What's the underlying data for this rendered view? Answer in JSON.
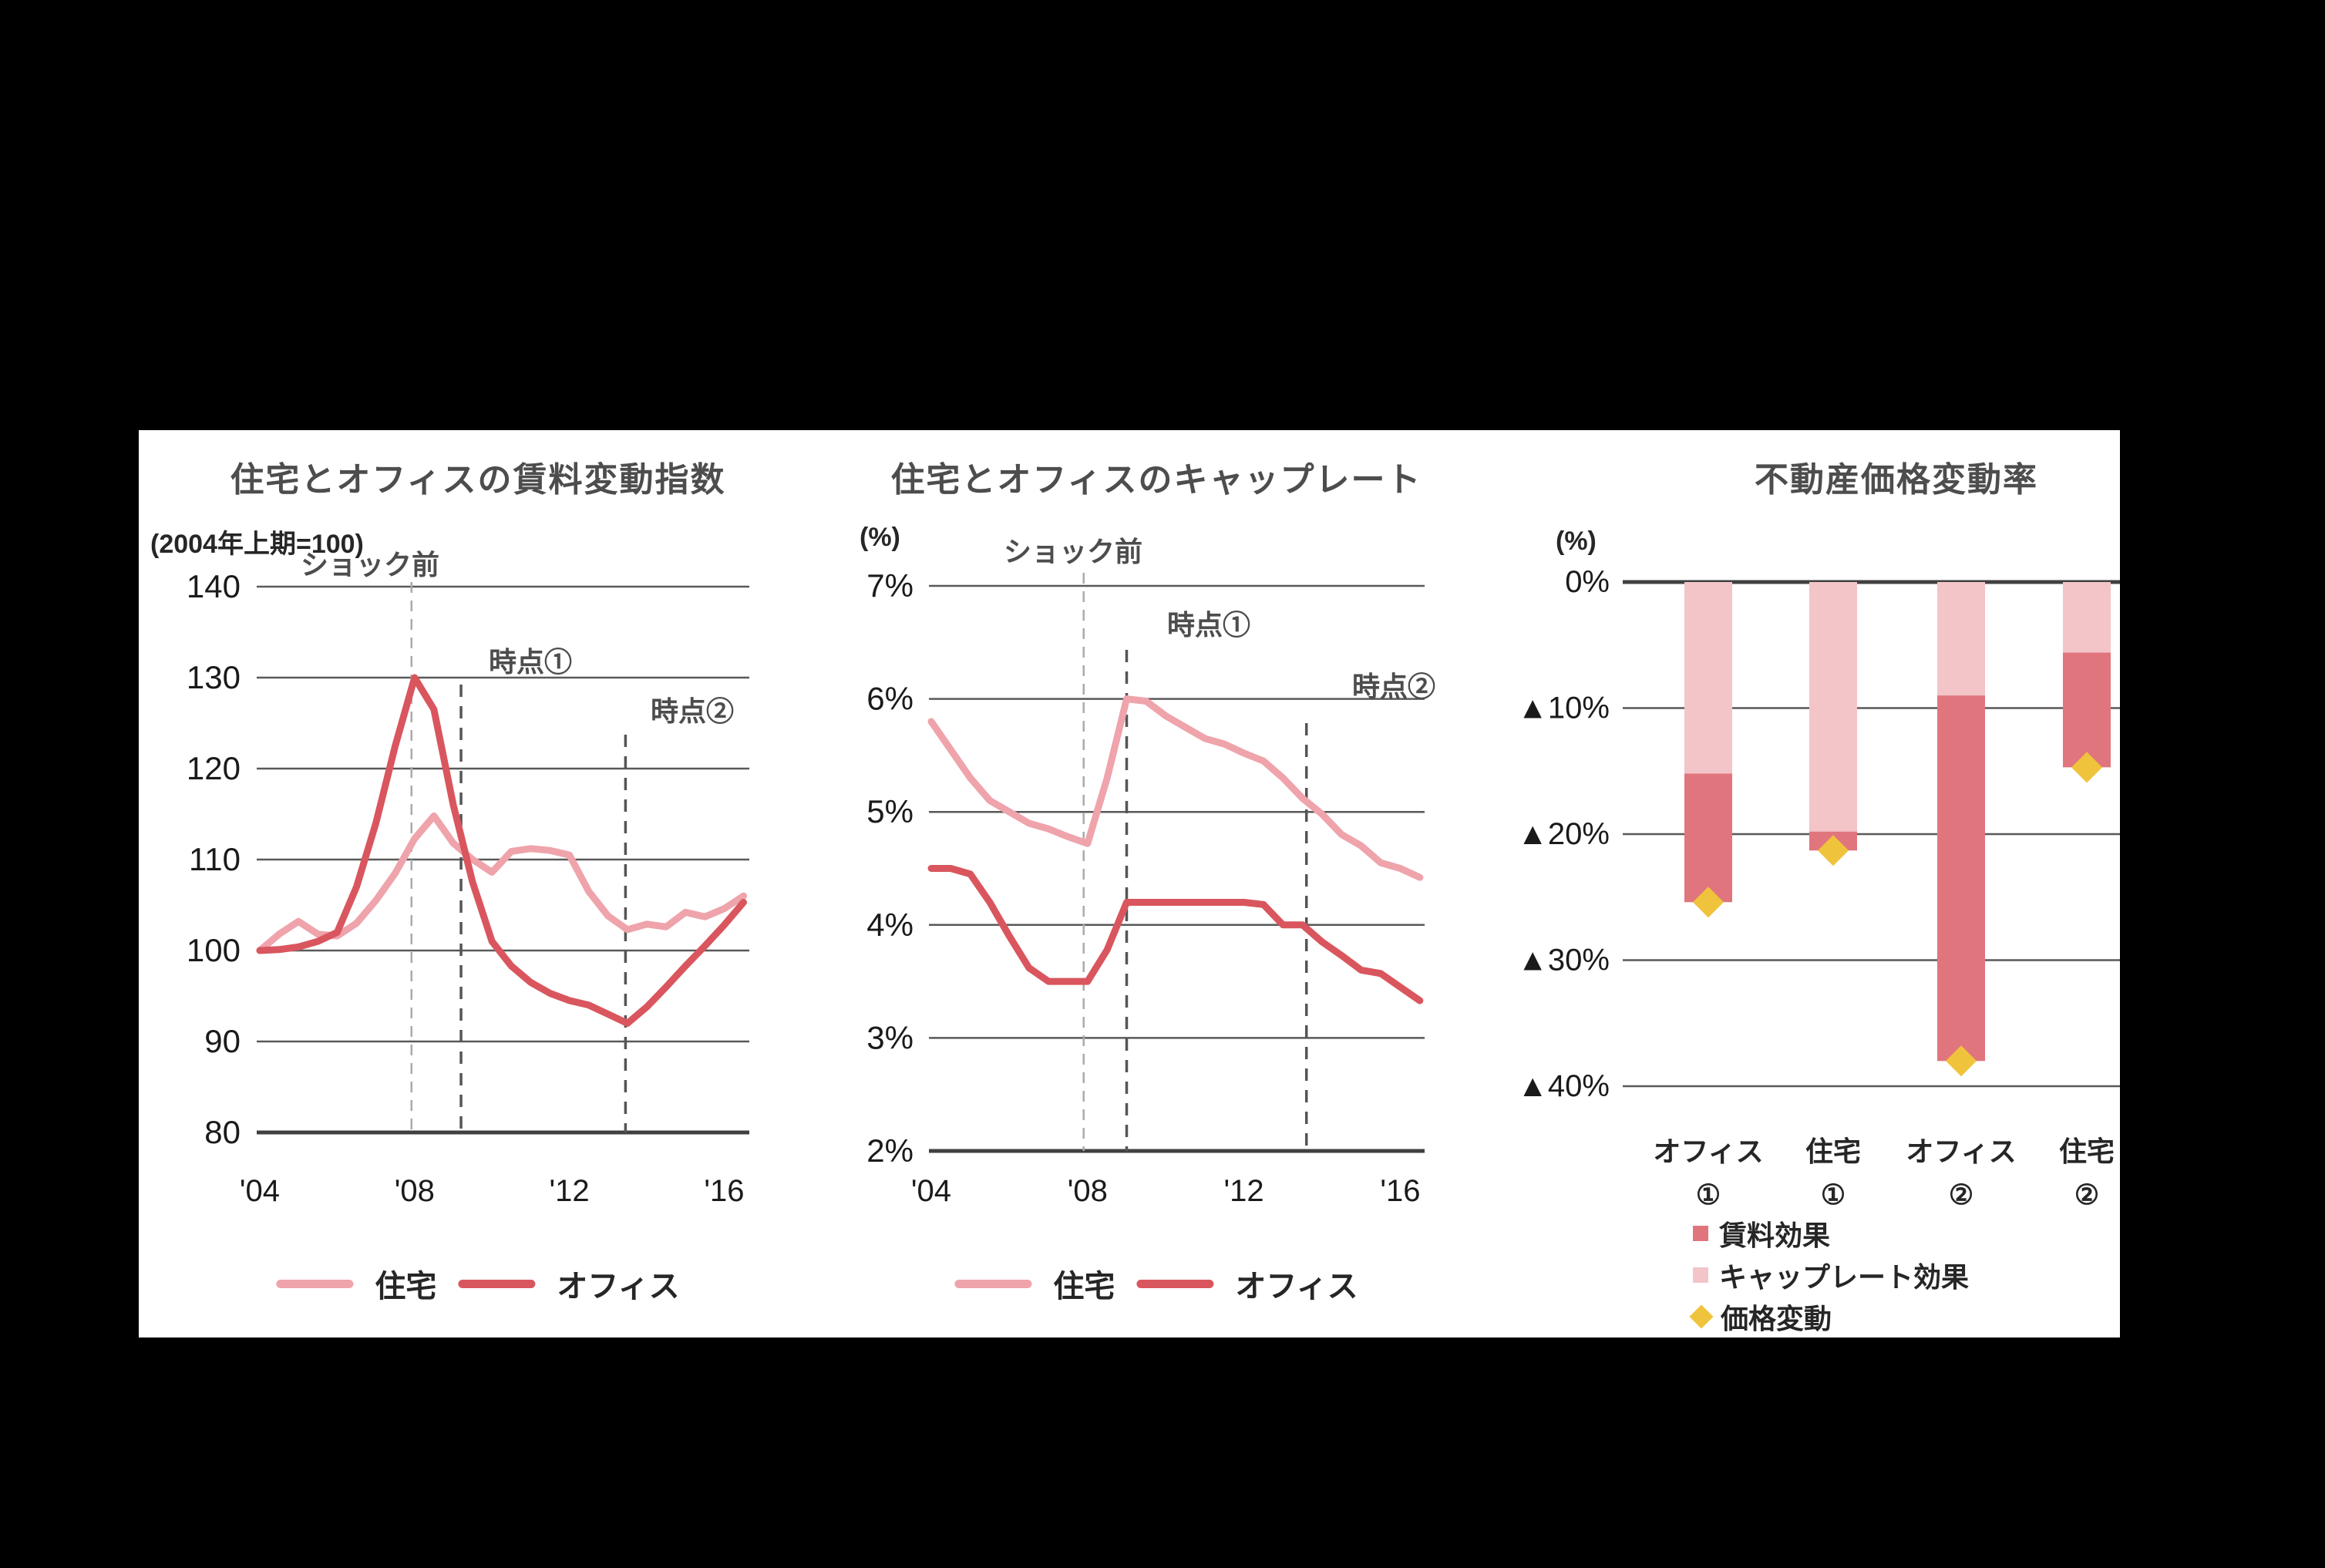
{
  "page": {
    "background": "#000000",
    "panel_background": "#ffffff"
  },
  "colors": {
    "residential_line": "#efa3ab",
    "office_line": "#d9565e",
    "rent_effect_bar": "#e0757e",
    "caprate_effect_bar": "#f3c4c8",
    "price_change_diamond": "#f0c33c",
    "gridline": "#595959",
    "axis": "#404040",
    "dash_light": "#aaaaaa",
    "dash_dark": "#555555",
    "title_text": "#4d4d4d",
    "tick_text": "#1a1a1a"
  },
  "chart_data": [
    {
      "type": "line",
      "title": "住宅とオフィスの賃料変動指数",
      "axis_note": "(2004年上期=100)",
      "ylim": [
        80,
        140
      ],
      "grid": true,
      "legend_position": "bottom",
      "y_ticks": [
        {
          "v": 140,
          "label": "140"
        },
        {
          "v": 130,
          "label": "130"
        },
        {
          "v": 120,
          "label": "120"
        },
        {
          "v": 110,
          "label": "110"
        },
        {
          "v": 100,
          "label": "100"
        },
        {
          "v": 90,
          "label": "90"
        },
        {
          "v": 80,
          "label": "80"
        }
      ],
      "x_ticks": [
        {
          "year": 2004,
          "label": "'04"
        },
        {
          "year": 2008,
          "label": "'08"
        },
        {
          "year": 2012,
          "label": "'12"
        },
        {
          "year": 2016,
          "label": "'16"
        }
      ],
      "annotations": [
        {
          "label": "ショック前",
          "year": 2007.92,
          "style": "light"
        },
        {
          "label": "時点①",
          "year": 2009.2,
          "style": "dark"
        },
        {
          "label": "時点②",
          "year": 2013.45,
          "style": "dark"
        }
      ],
      "x": [
        2004,
        2004.5,
        2005,
        2005.5,
        2006,
        2006.5,
        2007,
        2007.5,
        2008,
        2008.5,
        2009,
        2009.5,
        2010,
        2010.5,
        2011,
        2011.5,
        2012,
        2012.5,
        2013,
        2013.5,
        2014,
        2014.5,
        2015,
        2015.5,
        2016,
        2016.5
      ],
      "series": [
        {
          "name": "住宅",
          "color": "#efa3ab",
          "values": [
            100,
            101.8,
            103.2,
            101.8,
            101.6,
            103,
            105.5,
            108.5,
            112.3,
            114.8,
            111.8,
            110,
            108.6,
            110.9,
            111.2,
            111,
            110.5,
            106.5,
            103.8,
            102.3,
            102.9,
            102.6,
            104.2,
            103.7,
            104.6,
            106
          ]
        },
        {
          "name": "オフィス",
          "color": "#d9565e",
          "values": [
            100,
            100.1,
            100.4,
            101,
            102,
            107,
            114,
            122.5,
            130,
            126.5,
            116,
            107.5,
            101,
            98.3,
            96.5,
            95.3,
            94.5,
            94,
            93,
            92,
            93.8,
            96,
            98.3,
            100.5,
            102.8,
            105.3
          ]
        }
      ]
    },
    {
      "type": "line",
      "title": "住宅とオフィスのキャップレート",
      "axis_note": "(%)",
      "ylim": [
        2,
        7
      ],
      "grid": true,
      "legend_position": "bottom",
      "y_ticks": [
        {
          "v": 7,
          "label": "7%"
        },
        {
          "v": 6,
          "label": "6%"
        },
        {
          "v": 5,
          "label": "5%"
        },
        {
          "v": 4,
          "label": "4%"
        },
        {
          "v": 3,
          "label": "3%"
        },
        {
          "v": 2,
          "label": "2%"
        }
      ],
      "x_ticks": [
        {
          "year": 2004,
          "label": "'04"
        },
        {
          "year": 2008,
          "label": "'08"
        },
        {
          "year": 2012,
          "label": "'12"
        },
        {
          "year": 2016,
          "label": "'16"
        }
      ],
      "annotations": [
        {
          "label": "ショック前",
          "year": 2007.9,
          "style": "light"
        },
        {
          "label": "時点①",
          "year": 2009.0,
          "style": "dark"
        },
        {
          "label": "時点②",
          "year": 2013.6,
          "style": "dark"
        }
      ],
      "x": [
        2004,
        2004.5,
        2005,
        2005.5,
        2006,
        2006.5,
        2007,
        2007.5,
        2008,
        2008.5,
        2009,
        2009.5,
        2010,
        2010.5,
        2011,
        2011.5,
        2012,
        2012.5,
        2013,
        2013.5,
        2014,
        2014.5,
        2015,
        2015.5,
        2016,
        2016.5
      ],
      "series": [
        {
          "name": "住宅",
          "color": "#efa3ab",
          "values": [
            5.8,
            5.55,
            5.3,
            5.1,
            5,
            4.9,
            4.85,
            4.78,
            4.72,
            5.3,
            6,
            5.98,
            5.85,
            5.75,
            5.65,
            5.6,
            5.52,
            5.45,
            5.3,
            5.12,
            4.98,
            4.8,
            4.7,
            4.55,
            4.5,
            4.42
          ]
        },
        {
          "name": "オフィス",
          "color": "#d9565e",
          "values": [
            4.5,
            4.5,
            4.45,
            4.2,
            3.9,
            3.62,
            3.5,
            3.5,
            3.5,
            3.78,
            4.2,
            4.2,
            4.2,
            4.2,
            4.2,
            4.2,
            4.2,
            4.18,
            4,
            4,
            3.85,
            3.73,
            3.6,
            3.57,
            3.45,
            3.33
          ]
        }
      ]
    },
    {
      "type": "stacked-bar",
      "title": "不動産価格変動率",
      "axis_note": "(%)",
      "ylim": [
        -40,
        0
      ],
      "grid": true,
      "legend_position": "bottom-left",
      "y_ticks": [
        {
          "v": 0,
          "label": "0%"
        },
        {
          "v": -10,
          "label": "▲10%"
        },
        {
          "v": -20,
          "label": "▲20%"
        },
        {
          "v": -30,
          "label": "▲30%"
        },
        {
          "v": -40,
          "label": "▲40%"
        }
      ],
      "categories": [
        {
          "line1": "オフィス",
          "line2": "①"
        },
        {
          "line1": "住宅",
          "line2": "①"
        },
        {
          "line1": "オフィス",
          "line2": "②"
        },
        {
          "line1": "住宅",
          "line2": "②"
        }
      ],
      "stack_order": [
        1,
        0
      ],
      "series": [
        {
          "name": "賃料効果",
          "color": "#e0757e",
          "values": [
            -10.2,
            -1.5,
            -29,
            -9.1
          ]
        },
        {
          "name": "キャップレート効果",
          "color": "#f3c4c8",
          "values": [
            -15.2,
            -19.8,
            -9,
            -5.6
          ]
        }
      ],
      "markers": {
        "name": "価格変動",
        "color": "#f0c33c",
        "values": [
          -25.4,
          -21.3,
          -38,
          -14.7
        ]
      }
    }
  ]
}
